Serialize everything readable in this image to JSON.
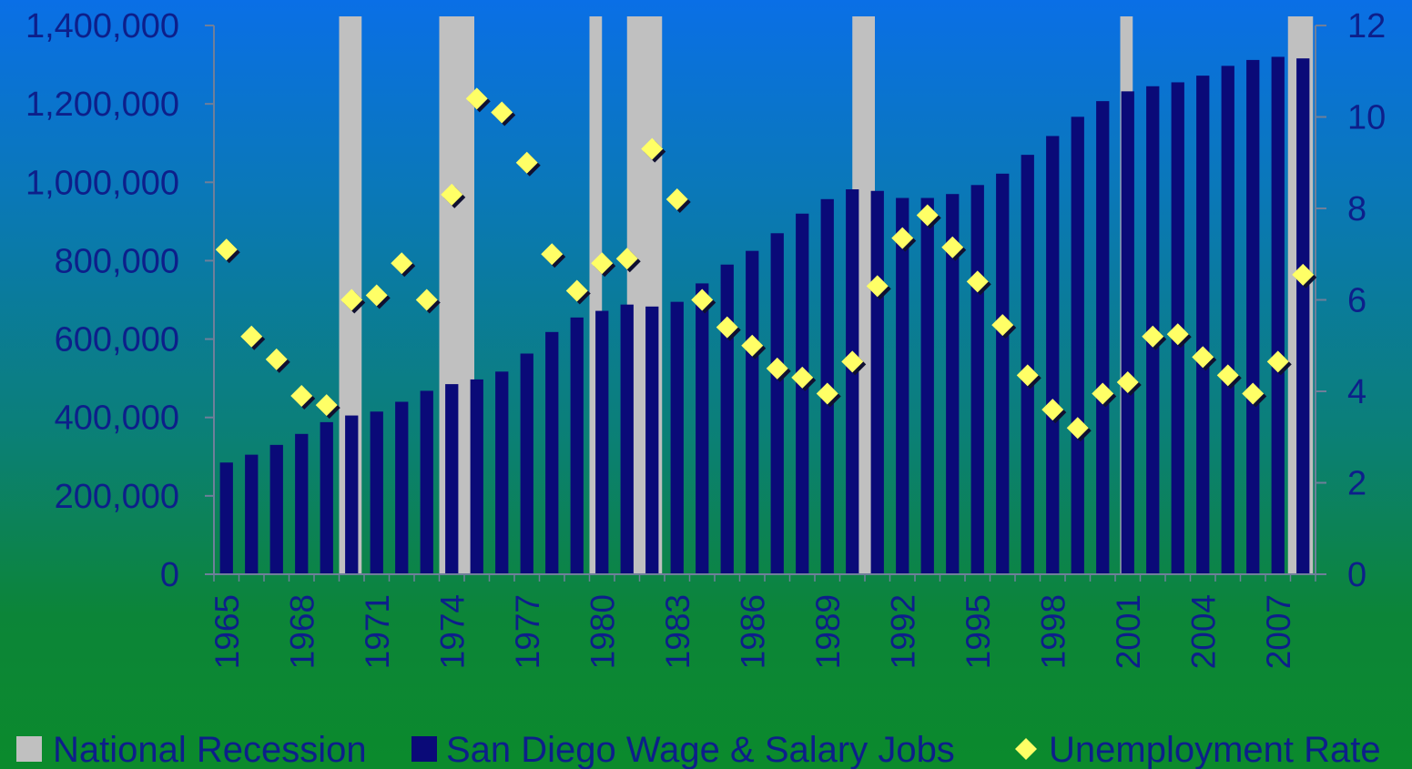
{
  "chart_data": {
    "type": "bar",
    "x_tick_labels": [
      "1965",
      "1968",
      "1971",
      "1974",
      "1977",
      "1980",
      "1983",
      "1986",
      "1989",
      "1992",
      "1995",
      "1998",
      "2001",
      "2004",
      "2007"
    ],
    "years": [
      1965,
      1966,
      1967,
      1968,
      1969,
      1970,
      1971,
      1972,
      1973,
      1974,
      1975,
      1976,
      1977,
      1978,
      1979,
      1980,
      1981,
      1982,
      1983,
      1984,
      1985,
      1986,
      1987,
      1988,
      1989,
      1990,
      1991,
      1992,
      1993,
      1994,
      1995,
      1996,
      1997,
      1998,
      1999,
      2000,
      2001,
      2002,
      2003,
      2004,
      2005,
      2006,
      2007,
      2008
    ],
    "y_left_ticks": [
      "0",
      "200,000",
      "400,000",
      "600,000",
      "800,000",
      "1,000,000",
      "1,200,000",
      "1,400,000"
    ],
    "y_left_range": [
      0,
      1400000
    ],
    "y_right_ticks": [
      "0",
      "2",
      "4",
      "6",
      "8",
      "10",
      "12"
    ],
    "y_right_range": [
      0,
      12
    ],
    "series": [
      {
        "name": "National Recession",
        "type": "shaded-bands",
        "color": "#c0c0c0",
        "periods": [
          [
            1970,
            1970.9
          ],
          [
            1974,
            1975.4
          ],
          [
            1980,
            1980.5
          ],
          [
            1981.5,
            1982.9
          ],
          [
            1990.5,
            1991.4
          ],
          [
            2001.2,
            2001.7
          ],
          [
            2007.9,
            2008.9
          ]
        ]
      },
      {
        "name": "San Diego Wage & Salary Jobs",
        "type": "bar",
        "axis": "left",
        "color": "#0a0a78",
        "values": [
          285000,
          305000,
          330000,
          358000,
          388000,
          405000,
          415000,
          440000,
          468000,
          485000,
          497000,
          517000,
          563000,
          618000,
          655000,
          672000,
          688000,
          683000,
          695000,
          742000,
          790000,
          825000,
          870000,
          920000,
          957000,
          982000,
          978000,
          960000,
          960000,
          970000,
          993000,
          1022000,
          1070000,
          1118000,
          1167000,
          1207000,
          1232000,
          1245000,
          1255000,
          1272000,
          1297000,
          1312000,
          1320000,
          1316000
        ]
      },
      {
        "name": "Unemployment Rate",
        "type": "scatter",
        "axis": "right",
        "color": "#ffff66",
        "values": [
          7.1,
          5.2,
          4.7,
          3.9,
          3.7,
          6.0,
          6.1,
          6.8,
          6.0,
          8.3,
          10.4,
          10.1,
          9.0,
          7.0,
          6.2,
          6.8,
          6.9,
          9.3,
          8.2,
          6.0,
          5.4,
          5.0,
          4.5,
          4.3,
          3.95,
          4.65,
          6.3,
          7.35,
          7.85,
          7.15,
          6.4,
          5.45,
          4.35,
          3.6,
          3.2,
          3.95,
          4.2,
          5.2,
          5.25,
          4.75,
          4.35,
          3.95,
          4.65,
          6.55
        ]
      }
    ],
    "legend": [
      {
        "label": "National Recession",
        "marker": "square",
        "color": "#c0c0c0"
      },
      {
        "label": "San Diego Wage & Salary Jobs",
        "marker": "square",
        "color": "#0a0a78"
      },
      {
        "label": "Unemployment Rate",
        "marker": "diamond",
        "color": "#ffff66"
      }
    ],
    "legend_position": "bottom",
    "grid": false
  }
}
